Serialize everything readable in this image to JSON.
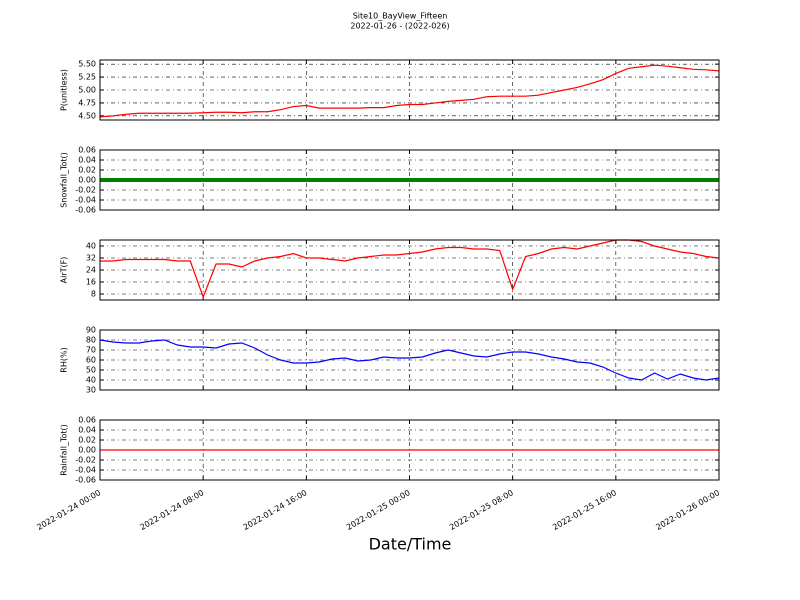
{
  "title": "Site10_BayView_Fifteen",
  "subtitle": "2022-01-26 - (2022-026)",
  "xlabel": "Date/Time",
  "x": [
    "2022-01-24 00:00",
    "2022-01-24 01:00",
    "2022-01-24 02:00",
    "2022-01-24 03:00",
    "2022-01-24 04:00",
    "2022-01-24 05:00",
    "2022-01-24 06:00",
    "2022-01-24 07:00",
    "2022-01-24 08:00",
    "2022-01-24 09:00",
    "2022-01-24 10:00",
    "2022-01-24 11:00",
    "2022-01-24 12:00",
    "2022-01-24 13:00",
    "2022-01-24 14:00",
    "2022-01-24 15:00",
    "2022-01-24 16:00",
    "2022-01-24 17:00",
    "2022-01-24 18:00",
    "2022-01-24 19:00",
    "2022-01-24 20:00",
    "2022-01-24 21:00",
    "2022-01-24 22:00",
    "2022-01-24 23:00",
    "2022-01-25 00:00",
    "2022-01-25 01:00",
    "2022-01-25 02:00",
    "2022-01-25 03:00",
    "2022-01-25 04:00",
    "2022-01-25 05:00",
    "2022-01-25 06:00",
    "2022-01-25 07:00",
    "2022-01-25 08:00",
    "2022-01-25 09:00",
    "2022-01-25 10:00",
    "2022-01-25 11:00",
    "2022-01-25 12:00",
    "2022-01-25 13:00",
    "2022-01-25 14:00",
    "2022-01-25 15:00",
    "2022-01-25 16:00",
    "2022-01-25 17:00",
    "2022-01-25 18:00",
    "2022-01-25 19:00",
    "2022-01-25 20:00",
    "2022-01-25 21:00",
    "2022-01-25 22:00",
    "2022-01-25 23:00",
    "2022-01-26 00:00"
  ],
  "xlim": [
    "2022-01-24 00:00",
    "2022-01-26 00:00"
  ],
  "xticks": [
    "2022-01-24 00:00",
    "2022-01-24 08:00",
    "2022-01-24 16:00",
    "2022-01-25 00:00",
    "2022-01-25 08:00",
    "2022-01-25 16:00",
    "2022-01-26 00:00"
  ],
  "grid": true,
  "chart_data": [
    {
      "type": "line",
      "ylabel": "P(unitless)",
      "ylim": [
        4.42,
        5.58
      ],
      "yticks": [
        {
          "value": 4.5,
          "label": "4.50"
        },
        {
          "value": 4.75,
          "label": "4.75"
        },
        {
          "value": 5.0,
          "label": "5.00"
        },
        {
          "value": 5.25,
          "label": "5.25"
        },
        {
          "value": 5.5,
          "label": "5.50"
        }
      ],
      "series": [
        {
          "name": "P",
          "color": "#ff0000",
          "values": [
            4.48,
            4.5,
            4.53,
            4.55,
            4.55,
            4.55,
            4.55,
            4.55,
            4.56,
            4.57,
            4.57,
            4.56,
            4.58,
            4.58,
            4.62,
            4.68,
            4.7,
            4.65,
            4.65,
            4.65,
            4.65,
            4.66,
            4.66,
            4.7,
            4.72,
            4.72,
            4.75,
            4.78,
            4.8,
            4.82,
            4.87,
            4.88,
            4.88,
            4.88,
            4.9,
            4.95,
            5.0,
            5.05,
            5.12,
            5.2,
            5.32,
            5.42,
            5.45,
            5.48,
            5.46,
            5.43,
            5.4,
            5.39,
            5.37
          ]
        }
      ]
    },
    {
      "type": "line",
      "ylabel": "Snowfall_Tot()",
      "ylim": [
        -0.06,
        0.06
      ],
      "yticks": [
        {
          "value": -0.06,
          "label": "-0.06"
        },
        {
          "value": -0.04,
          "label": "-0.04"
        },
        {
          "value": -0.02,
          "label": "-0.02"
        },
        {
          "value": 0,
          "label": "0.00"
        },
        {
          "value": 0.02,
          "label": "0.02"
        },
        {
          "value": 0.04,
          "label": "0.04"
        },
        {
          "value": 0.06,
          "label": "0.06"
        }
      ],
      "series": [
        {
          "name": "Snowfall_Tot",
          "color": "#008000",
          "values": [
            0,
            0,
            0,
            0,
            0,
            0,
            0,
            0,
            0,
            0,
            0,
            0,
            0,
            0,
            0,
            0,
            0,
            0,
            0,
            0,
            0,
            0,
            0,
            0,
            0,
            0,
            0,
            0,
            0,
            0,
            0,
            0,
            0,
            0,
            0,
            0,
            0,
            0,
            0,
            0,
            0,
            0,
            0,
            0,
            0,
            0,
            0,
            0,
            0
          ]
        }
      ]
    },
    {
      "type": "line",
      "ylabel": "AirT(F)",
      "ylim": [
        4,
        44
      ],
      "yticks": [
        8,
        16,
        24,
        32,
        40
      ],
      "series": [
        {
          "name": "AirT",
          "color": "#ff0000",
          "values": [
            30,
            30,
            31,
            31,
            31,
            31,
            30,
            30,
            6,
            28,
            28,
            26,
            30,
            32,
            33,
            35,
            32,
            32,
            31,
            30,
            32,
            33,
            34,
            34,
            35,
            36,
            38,
            39,
            39,
            38,
            38,
            37,
            11,
            33,
            35,
            38,
            39,
            38,
            40,
            42,
            44,
            44,
            43,
            40,
            38,
            36,
            35,
            33,
            32
          ]
        }
      ]
    },
    {
      "type": "line",
      "ylabel": "RH(%)",
      "ylim": [
        30,
        90
      ],
      "yticks": [
        30,
        40,
        50,
        60,
        70,
        80,
        90
      ],
      "series": [
        {
          "name": "RH",
          "color": "#0000ff",
          "values": [
            80,
            78,
            77,
            77,
            79,
            80,
            75,
            73,
            73,
            72,
            76,
            77,
            72,
            65,
            60,
            57,
            57,
            58,
            61,
            62,
            59,
            60,
            63,
            62,
            62,
            63,
            67,
            70,
            67,
            64,
            63,
            66,
            68,
            68,
            66,
            63,
            61,
            58,
            57,
            53,
            47,
            42,
            40,
            47,
            41,
            46,
            42,
            40,
            42
          ]
        }
      ]
    },
    {
      "type": "line",
      "ylabel": "Rainfall_Tot()",
      "ylim": [
        -0.06,
        0.06
      ],
      "yticks": [
        {
          "value": -0.06,
          "label": "-0.06"
        },
        {
          "value": -0.04,
          "label": "-0.04"
        },
        {
          "value": -0.02,
          "label": "-0.02"
        },
        {
          "value": 0,
          "label": "0.00"
        },
        {
          "value": 0.02,
          "label": "0.02"
        },
        {
          "value": 0.04,
          "label": "0.04"
        },
        {
          "value": 0.06,
          "label": "0.06"
        }
      ],
      "series": [
        {
          "name": "Rainfall_Tot",
          "color": "#ff0000",
          "values": [
            0,
            0,
            0,
            0,
            0,
            0,
            0,
            0,
            0,
            0,
            0,
            0,
            0,
            0,
            0,
            0,
            0,
            0,
            0,
            0,
            0,
            0,
            0,
            0,
            0,
            0,
            0,
            0,
            0,
            0,
            0,
            0,
            0,
            0,
            0,
            0,
            0,
            0,
            0,
            0,
            0,
            0,
            0,
            0,
            0,
            0,
            0,
            0,
            0
          ]
        }
      ]
    }
  ]
}
